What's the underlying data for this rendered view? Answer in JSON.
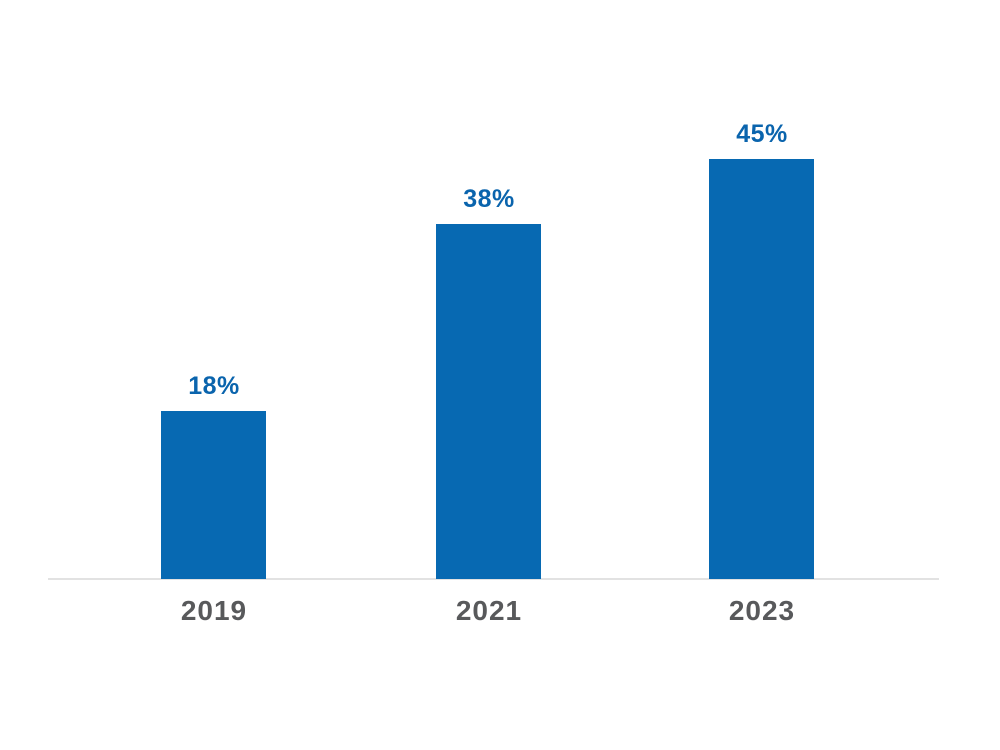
{
  "chart_data": {
    "type": "bar",
    "title": "",
    "xlabel": "",
    "ylabel": "",
    "categories": [
      "2019",
      "2021",
      "2023"
    ],
    "values": [
      18,
      38,
      45
    ],
    "value_labels": [
      "18%",
      "38%",
      "45%"
    ],
    "unit": "%",
    "ylim": [
      0,
      50
    ],
    "grid": false,
    "legend_position": "none",
    "axis_visible": "x-baseline-only",
    "colors": {
      "bar": "#0769b2",
      "value_label": "#0a64ad",
      "category_label": "#58595b",
      "axis_line": "#e2e2e2",
      "background": "#ffffff"
    }
  }
}
